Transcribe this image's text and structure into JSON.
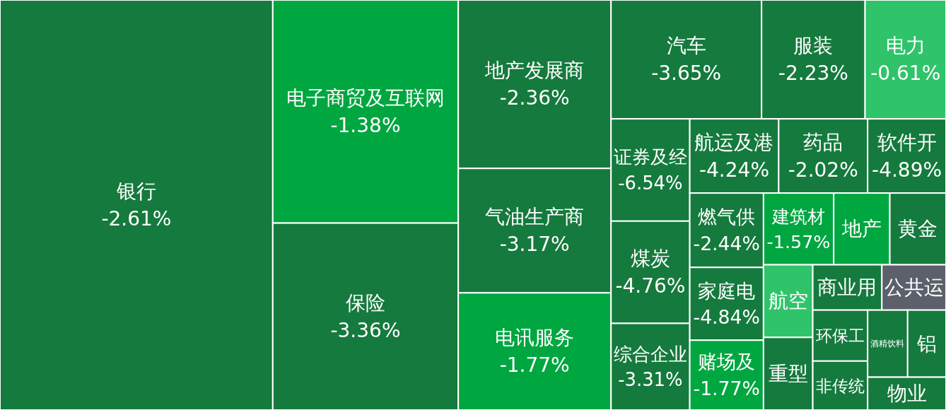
{
  "chart_data": {
    "type": "other",
    "categories": [
      "银行",
      "电子商贸及互联网",
      "保险",
      "地产发展商",
      "气油生产商",
      "电讯服务",
      "汽车",
      "服装",
      "电力",
      "证券及经",
      "煤炭",
      "综合企业",
      "航运及港",
      "药品",
      "软件开",
      "燃气供",
      "家庭电",
      "赌场及",
      "建筑材",
      "地产",
      "黄金",
      "航空",
      "重型",
      "商业用",
      "公共运",
      "环保工",
      "非传统",
      "酒精饮料",
      "铝",
      "物业"
    ],
    "values": [
      -2.61,
      -1.38,
      -3.36,
      -2.36,
      -3.17,
      -1.77,
      -3.65,
      -2.23,
      -0.61,
      -6.54,
      -4.76,
      -3.31,
      -4.24,
      -2.02,
      -4.89,
      -2.44,
      -4.84,
      -1.77,
      -1.57,
      null,
      null,
      null,
      null,
      null,
      null,
      null,
      null,
      null,
      null,
      null
    ],
    "value_labels": [
      "-2.61%",
      "-1.38%",
      "-3.36%",
      "-2.36%",
      "-3.17%",
      "-1.77%",
      "-3.65%",
      "-2.23%",
      "-0.61%",
      "-6.54%",
      "-4.76%",
      "-3.31%",
      "-4.24%",
      "-2.02%",
      "-4.89%",
      "-2.44%",
      "-4.84%",
      "-1.77%",
      "-1.57%",
      null,
      null,
      null,
      null,
      null,
      null,
      null,
      null,
      null,
      null,
      null
    ],
    "colors": [
      "#157a3d",
      "#00a640",
      "#157a3d",
      "#157a3d",
      "#157a3d",
      "#00a640",
      "#157a3d",
      "#157a3d",
      "#2fc46a",
      "#157a3d",
      "#157a3d",
      "#157a3d",
      "#157a3d",
      "#157a3d",
      "#157a3d",
      "#157a3d",
      "#157a3d",
      "#00a640",
      "#00a640",
      "#00a640",
      "#157a3d",
      "#2fc46a",
      "#157a3d",
      "#157a3d",
      "#5b606b",
      "#157a3d",
      "#157a3d",
      "#157a3d",
      "#157a3d",
      "#157a3d"
    ]
  }
}
